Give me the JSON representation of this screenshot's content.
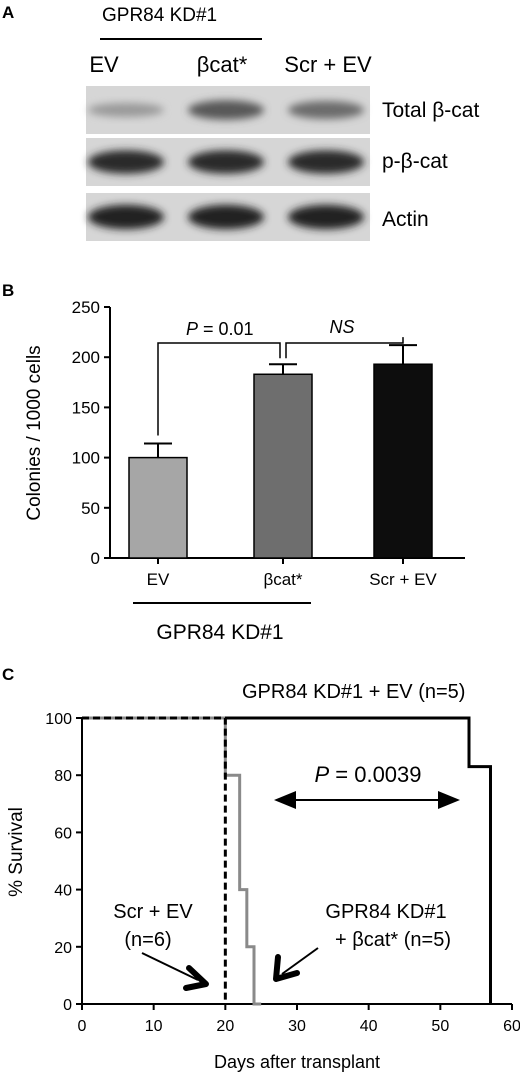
{
  "panel_a": {
    "label": "A",
    "group_label": "GPR84 KD#1",
    "lanes": [
      "EV",
      "βcat*",
      "Scr + EV"
    ],
    "rows": [
      {
        "label": "Total β-cat",
        "intensity": [
          0.25,
          0.6,
          0.5
        ]
      },
      {
        "label": "p-β-cat",
        "intensity": [
          0.85,
          0.85,
          0.85
        ]
      },
      {
        "label": "Actin",
        "intensity": [
          0.9,
          0.9,
          0.9
        ]
      }
    ]
  },
  "panel_b": {
    "label": "B",
    "group_label": "GPR84 KD#1",
    "significance": {
      "p_prefix": "P",
      "p_value": " = 0.01",
      "ns": "NS"
    },
    "colors": {
      "EV": "#a6a6a6",
      "bcat": "#6e6e6e",
      "scr": "#0d0d0d"
    }
  },
  "panel_c": {
    "label": "C",
    "annotation_kd_ev": "GPR84 KD#1 + EV (n=5)",
    "annotation_p_prefix": "P",
    "annotation_p_value": " = 0.0039",
    "annotation_scr_line1": "Scr  + EV",
    "annotation_scr_line2": "(n=6)",
    "annotation_bcat_line1": "GPR84 KD#1",
    "annotation_bcat_line2": "+ βcat*  (n=5)"
  },
  "chart_data": [
    {
      "type": "bar",
      "categories": [
        "EV",
        "βcat*",
        "Scr + EV"
      ],
      "values": [
        100,
        183,
        193
      ],
      "errors": [
        14,
        10,
        19
      ],
      "ylabel": "Colonies / 1000 cells",
      "xlabel": "GPR84 KD#1",
      "ylim": [
        0,
        250
      ],
      "yticks": [
        0,
        50,
        100,
        150,
        200,
        250
      ]
    },
    {
      "type": "line",
      "xlabel": "Days after transplant",
      "ylabel": "% Survival",
      "xlim": [
        0,
        60
      ],
      "ylim": [
        0,
        100
      ],
      "xticks": [
        0,
        10,
        20,
        30,
        40,
        50,
        60
      ],
      "yticks": [
        0,
        20,
        40,
        60,
        80,
        100
      ],
      "series": [
        {
          "style": "dashed-black",
          "x": [
            0,
            20,
            20
          ],
          "y": [
            100,
            100,
            0
          ]
        },
        {
          "style": "solid-gray",
          "x": [
            0,
            20,
            20,
            22,
            22,
            23,
            23,
            24,
            24,
            25,
            25
          ],
          "y": [
            100,
            100,
            80,
            80,
            40,
            40,
            20,
            20,
            0,
            0,
            0
          ]
        },
        {
          "style": "solid-black",
          "x": [
            20,
            54,
            54,
            57,
            57
          ],
          "y": [
            100,
            100,
            83,
            83,
            0
          ]
        }
      ]
    }
  ]
}
